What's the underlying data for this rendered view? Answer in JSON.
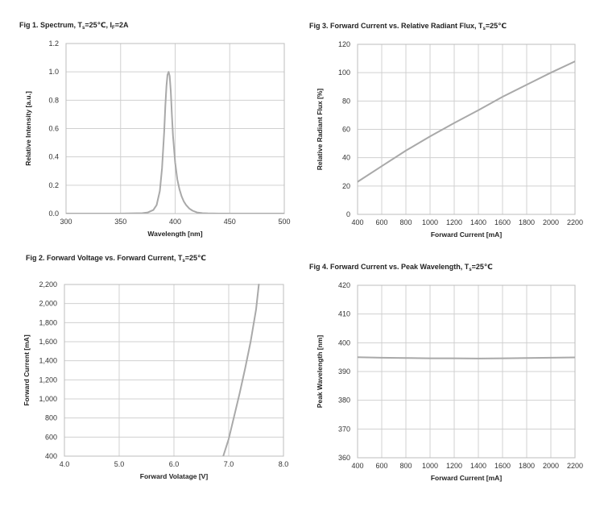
{
  "figures": [
    {
      "title_prefix": "Fig 1. Spectrum, T",
      "title_sub1": "s",
      "title_mid": "=25℃, I",
      "title_sub2": "F",
      "title_suffix": "=2A"
    },
    {
      "title_prefix": "Fig 2. Forward Voltage vs. Forward Current, T",
      "title_sub1": "s",
      "title_suffix": "=25℃"
    },
    {
      "title_prefix": "Fig 3. Forward Current vs. Relative Radiant Flux, T",
      "title_sub1": "s",
      "title_suffix": "=25℃"
    },
    {
      "title_prefix": "Fig 4. Forward Current vs. Peak Wavelength, T",
      "title_sub1": "s",
      "title_suffix": "=25℃"
    }
  ],
  "chart_data": [
    {
      "id": "fig1",
      "type": "line",
      "xlabel": "Wavelength [nm]",
      "ylabel": "Relative Intensity [a.u.]",
      "xlim": [
        300,
        500
      ],
      "ylim": [
        0,
        1.2
      ],
      "xticks": [
        300,
        350,
        400,
        450,
        500
      ],
      "xtick_labels": [
        "300",
        "350",
        "400",
        "450",
        "500"
      ],
      "yticks": [
        0,
        0.2,
        0.4,
        0.6,
        0.8,
        1.0,
        1.2
      ],
      "ytick_labels": [
        "0.0",
        "0.2",
        "0.4",
        "0.6",
        "0.8",
        "1.0",
        "1.2"
      ],
      "series": [
        {
          "name": "Spectrum",
          "x": [
            300,
            350,
            370,
            375,
            380,
            383,
            386,
            388,
            390,
            391,
            392,
            393,
            394,
            395,
            396,
            397,
            398,
            400,
            402,
            404,
            406,
            408,
            410,
            413,
            416,
            420,
            425,
            430,
            440,
            450,
            500
          ],
          "y": [
            0,
            0,
            0.003,
            0.008,
            0.025,
            0.06,
            0.16,
            0.32,
            0.58,
            0.76,
            0.9,
            0.98,
            1.0,
            0.97,
            0.86,
            0.7,
            0.55,
            0.36,
            0.24,
            0.17,
            0.12,
            0.085,
            0.06,
            0.035,
            0.02,
            0.008,
            0.003,
            0.001,
            0,
            0,
            0
          ]
        }
      ]
    },
    {
      "id": "fig2",
      "type": "line",
      "xlabel": "Forward  Volatage [V]",
      "ylabel": "Forward Current [mA]",
      "xlim": [
        4.0,
        8.0
      ],
      "ylim": [
        400,
        2200
      ],
      "xticks": [
        4.0,
        5.0,
        6.0,
        7.0,
        8.0
      ],
      "xtick_labels": [
        "4.0",
        "5.0",
        "6.0",
        "7.0",
        "8.0"
      ],
      "yticks": [
        400,
        600,
        800,
        1000,
        1200,
        1400,
        1600,
        1800,
        2000,
        2200
      ],
      "ytick_labels": [
        "400",
        "600",
        "800",
        "1,000",
        "1,200",
        "1,400",
        "1,600",
        "1,800",
        "2,000",
        "2,200"
      ],
      "series": [
        {
          "name": "IV curve",
          "x": [
            6.9,
            7.0,
            7.1,
            7.2,
            7.3,
            7.4,
            7.5,
            7.55
          ],
          "y": [
            400,
            580,
            820,
            1060,
            1320,
            1600,
            1940,
            2200
          ]
        }
      ]
    },
    {
      "id": "fig3",
      "type": "line",
      "xlabel": "Forward Current [mA]",
      "ylabel": "Relative Radiant Flux [%]",
      "xlim": [
        400,
        2200
      ],
      "ylim": [
        0,
        120
      ],
      "xticks": [
        400,
        600,
        800,
        1000,
        1200,
        1400,
        1600,
        1800,
        2000,
        2200
      ],
      "xtick_labels": [
        "400",
        "600",
        "800",
        "1000",
        "1200",
        "1400",
        "1600",
        "1800",
        "2000",
        "2200"
      ],
      "yticks": [
        0,
        20,
        40,
        60,
        80,
        100,
        120
      ],
      "ytick_labels": [
        "0",
        "20",
        "40",
        "60",
        "80",
        "100",
        "120"
      ],
      "series": [
        {
          "name": "Relative Radiant Flux",
          "x": [
            400,
            600,
            800,
            1000,
            1200,
            1400,
            1600,
            1800,
            2000,
            2200
          ],
          "y": [
            23,
            34,
            45,
            55,
            64.5,
            73.5,
            83,
            91.5,
            100,
            108
          ]
        }
      ]
    },
    {
      "id": "fig4",
      "type": "line",
      "xlabel": "Forward Current [mA]",
      "ylabel": "Peak Wavelength [nm]",
      "xlim": [
        400,
        2200
      ],
      "ylim": [
        360,
        420
      ],
      "xticks": [
        400,
        600,
        800,
        1000,
        1200,
        1400,
        1600,
        1800,
        2000,
        2200
      ],
      "xtick_labels": [
        "400",
        "600",
        "800",
        "1000",
        "1200",
        "1400",
        "1600",
        "1800",
        "2000",
        "2200"
      ],
      "yticks": [
        360,
        370,
        380,
        390,
        400,
        410,
        420
      ],
      "ytick_labels": [
        "360",
        "370",
        "380",
        "390",
        "400",
        "410",
        "420"
      ],
      "series": [
        {
          "name": "Peak Wavelength",
          "x": [
            400,
            600,
            800,
            1000,
            1200,
            1400,
            1600,
            1800,
            2000,
            2200
          ],
          "y": [
            395,
            394.8,
            394.7,
            394.6,
            394.6,
            394.5,
            394.6,
            394.7,
            394.8,
            394.9
          ]
        }
      ]
    }
  ]
}
